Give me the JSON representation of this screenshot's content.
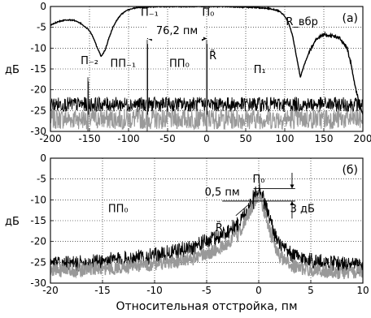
{
  "chart_data": [
    {
      "type": "line",
      "panel_label": "(а)",
      "ylabel": "дБ",
      "xlim": [
        -200,
        200
      ],
      "ylim": [
        -30,
        0
      ],
      "xticks": [
        -200,
        -150,
        -100,
        -50,
        0,
        50,
        100,
        150,
        200
      ],
      "yticks": [
        0,
        -5,
        -10,
        -15,
        -20,
        -25,
        -30
      ],
      "grid": true,
      "series": [
        {
          "name": "R_вбр",
          "color": "#000000",
          "x": [
            -200,
            -190,
            -180,
            -170,
            -160,
            -150,
            -145,
            -140,
            -135,
            -130,
            -125,
            -120,
            -115,
            -110,
            -105,
            -100,
            -95,
            -90,
            -80,
            -60,
            -40,
            -20,
            0,
            20,
            40,
            60,
            80,
            90,
            95,
            100,
            105,
            110,
            115,
            120,
            125,
            130,
            140,
            150,
            160,
            170,
            180,
            185,
            190,
            195,
            200
          ],
          "values": [
            -4.5,
            -3.6,
            -3.2,
            -3.3,
            -4.2,
            -5.8,
            -7.5,
            -10.0,
            -12.0,
            -10.5,
            -7.5,
            -5.0,
            -3.3,
            -2.0,
            -1.3,
            -0.8,
            -0.5,
            -0.3,
            -0.1,
            0.0,
            0.0,
            0.0,
            0.0,
            0.0,
            -0.1,
            -0.2,
            -0.5,
            -0.9,
            -1.4,
            -2.3,
            -4.0,
            -7.0,
            -12.0,
            -17.0,
            -14.0,
            -11.5,
            -7.8,
            -6.8,
            -7.0,
            -7.5,
            -10.0,
            -14.0,
            -19.0,
            -23.0,
            -26.0
          ]
        },
        {
          "name": "noise-black",
          "color": "#000000",
          "x": [
            -200,
            200
          ],
          "values": [
            -23.5,
            -23.5
          ]
        },
        {
          "name": "noise-gray",
          "color": "#999999",
          "x": [
            -200,
            200
          ],
          "values": [
            -27,
            -27
          ]
        }
      ],
      "peaks": [
        {
          "x": -152,
          "y": -17
        },
        {
          "x": -76.2,
          "y": -8
        },
        {
          "x": 0,
          "y": -8
        }
      ],
      "annotations": [
        {
          "text": "П₋₂",
          "x": -150,
          "y": -13.8
        },
        {
          "text": "ПП₋₁",
          "x": -107,
          "y": -14.5
        },
        {
          "text": "П₋₁",
          "x": -73,
          "y": -2.2
        },
        {
          "text": "П₀",
          "x": 2,
          "y": -2.2
        },
        {
          "text": "76,2 пм",
          "x": -38,
          "y": -6.6
        },
        {
          "text": "ПП₀",
          "x": -35,
          "y": -14.5
        },
        {
          "text": "R̃",
          "x": 8,
          "y": -12.7
        },
        {
          "text": "П₁",
          "x": 68,
          "y": -16
        },
        {
          "text": "R_вбр",
          "x": 122,
          "y": -4.5
        }
      ]
    },
    {
      "type": "line",
      "panel_label": "(б)",
      "xlabel": "Относительная отстройка, пм",
      "ylabel": "дБ",
      "xlim": [
        -20,
        10
      ],
      "ylim": [
        -30,
        0
      ],
      "xticks": [
        -20,
        -15,
        -10,
        -5,
        0,
        5,
        10
      ],
      "yticks": [
        0,
        -5,
        -10,
        -15,
        -20,
        -25,
        -30
      ],
      "grid": true,
      "series": [
        {
          "name": "black",
          "color": "#000000",
          "x": [
            -20,
            -18,
            -16,
            -14,
            -12,
            -10,
            -8,
            -6,
            -4,
            -3,
            -2,
            -1.5,
            -1,
            -0.5,
            0,
            0.5,
            1,
            1.5,
            2,
            3,
            4,
            6,
            8,
            10
          ],
          "values": [
            -25.5,
            -25.5,
            -25,
            -24.5,
            -24,
            -23.5,
            -22.5,
            -21,
            -19,
            -17.5,
            -16,
            -14,
            -12,
            -9.5,
            -7,
            -10,
            -14,
            -18,
            -21,
            -23,
            -24,
            -25,
            -25.5,
            -26
          ]
        },
        {
          "name": "gray",
          "color": "#999999",
          "x": [
            -20,
            -18,
            -16,
            -14,
            -12,
            -10,
            -8,
            -6,
            -4,
            -3,
            -2,
            -1.5,
            -1,
            -0.5,
            0,
            0.5,
            1,
            1.5,
            2,
            3,
            4,
            6,
            8,
            10
          ],
          "values": [
            -27,
            -27,
            -26.5,
            -26.5,
            -26,
            -25.5,
            -25,
            -24,
            -22,
            -20.5,
            -18.5,
            -16,
            -13.5,
            -11,
            -9,
            -12.5,
            -17,
            -21,
            -23.5,
            -25.5,
            -26.5,
            -27,
            -27.5,
            -27.5
          ]
        }
      ],
      "annotations": [
        {
          "text": "ПП₀",
          "x": -13.5,
          "y": -13
        },
        {
          "text": "П₀",
          "x": 0,
          "y": -5.8
        },
        {
          "text": "0,5 пм",
          "x": -3.5,
          "y": -9
        },
        {
          "text": "3 дБ",
          "x": 4.2,
          "y": -13
        },
        {
          "text": "R̃",
          "x": -3.8,
          "y": -17.5
        }
      ]
    }
  ]
}
